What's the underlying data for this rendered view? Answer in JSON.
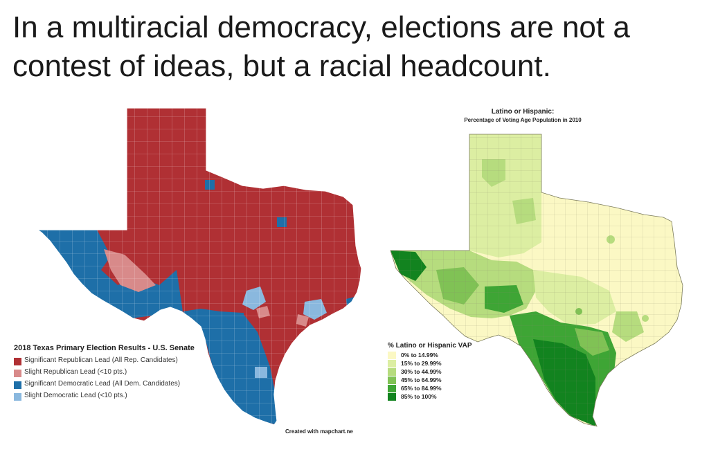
{
  "headline": "In a multiracial democracy, elections are not a contest of ideas, but a racial headcount.",
  "left_map": {
    "legend_title": "2018 Texas Primary Election Results - U.S. Senate",
    "legend": [
      {
        "label": "Significant Republican Lead (All Rep. Candidates)",
        "color": "#b03034"
      },
      {
        "label": "Slight Republican Lead (<10 pts.)",
        "color": "#d88a8a"
      },
      {
        "label": "Significant Democratic Lead (All Dem. Candidates)",
        "color": "#1e6fa8"
      },
      {
        "label": "Slight Democratic Lead (<10 pts.)",
        "color": "#8ab8de"
      }
    ],
    "credit": "Created with mapchart.ne"
  },
  "right_map": {
    "title": "Latino or Hispanic:",
    "subtitle": "Percentage of Voting Age Population in 2010",
    "legend_title": "% Latino or Hispanic VAP",
    "legend": [
      {
        "label": "0% to 14.99%",
        "color": "#fbf8c4"
      },
      {
        "label": "15% to 29.99%",
        "color": "#dceea2"
      },
      {
        "label": "30% to 44.99%",
        "color": "#b6dc7e"
      },
      {
        "label": "45% to 64.99%",
        "color": "#80c255"
      },
      {
        "label": "65% to 84.99%",
        "color": "#3ea535"
      },
      {
        "label": "85% to 100%",
        "color": "#12831f"
      }
    ]
  }
}
